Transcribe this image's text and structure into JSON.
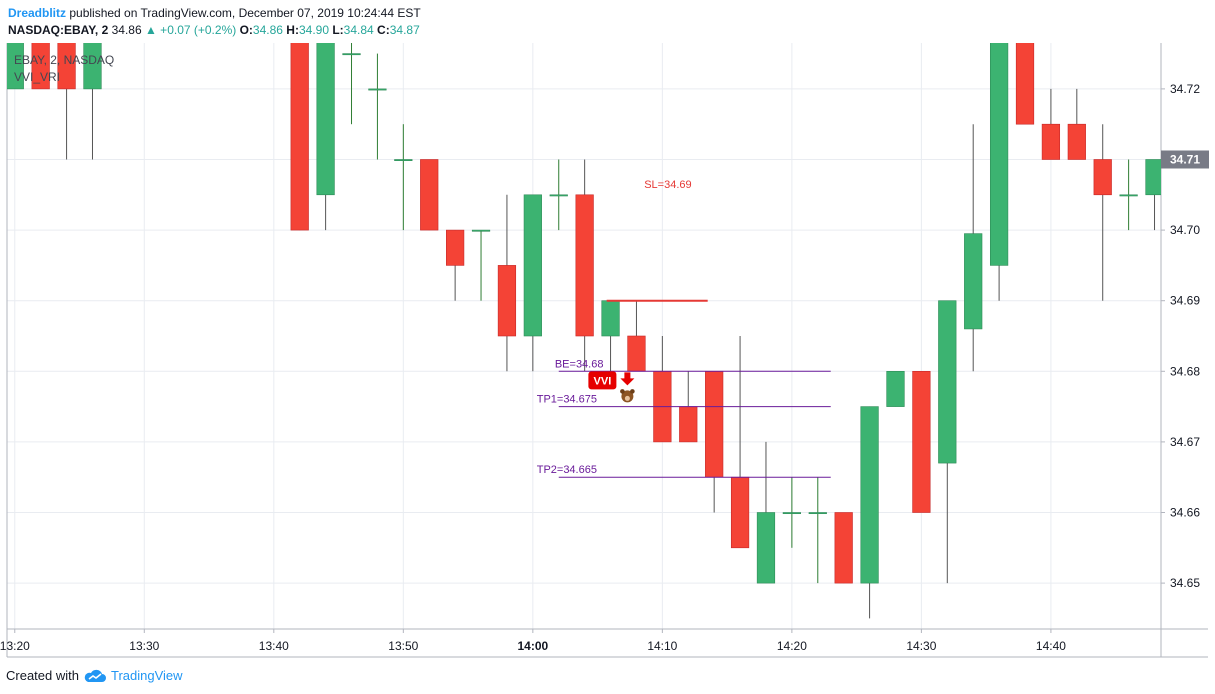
{
  "header": {
    "author": "Dreadblitz",
    "published": " published on TradingView.com, December 07, 2019 10:24:44 EST",
    "symbol": "NASDAQ:EBAY, 2",
    "last": "34.86",
    "change": "▲ +0.07 (+0.2%)",
    "o_label": "O:",
    "o": "34.86",
    "h_label": "H:",
    "h": "34.90",
    "l_label": "L:",
    "l": "34.84",
    "c_label": "C:",
    "c": "34.87"
  },
  "legend": {
    "series": "EBAY, 2, NASDAQ",
    "indicator": "VVI_VRI"
  },
  "footer": {
    "created": "Created with",
    "brand": "TradingView"
  },
  "colors": {
    "up": "#3cb371",
    "down": "#f44336",
    "grid": "#e9ecf1",
    "axis": "#b2b5be",
    "text": "#131722",
    "last_price_bg": "#787b86",
    "level": "#6a1b9a",
    "sl": "#e53935"
  },
  "chart_data": {
    "type": "candlestick",
    "x_ticks": [
      {
        "t": 0,
        "label": "13:20",
        "bold": false
      },
      {
        "t": 10,
        "label": "13:30",
        "bold": false
      },
      {
        "t": 20,
        "label": "13:40",
        "bold": false
      },
      {
        "t": 30,
        "label": "13:50",
        "bold": false
      },
      {
        "t": 40,
        "label": "14:00",
        "bold": true
      },
      {
        "t": 50,
        "label": "14:10",
        "bold": false
      },
      {
        "t": 60,
        "label": "14:20",
        "bold": false
      },
      {
        "t": 70,
        "label": "14:30",
        "bold": false
      },
      {
        "t": 80,
        "label": "14:40",
        "bold": false
      }
    ],
    "y_ticks": [
      "34.65",
      "34.66",
      "34.67",
      "34.68",
      "34.69",
      "34.70",
      "34.71",
      "34.72"
    ],
    "y_values": [
      34.65,
      34.66,
      34.67,
      34.68,
      34.69,
      34.7,
      34.71,
      34.72
    ],
    "ylim": [
      34.6435,
      34.7265
    ],
    "xlim": [
      -0.6,
      88.5
    ],
    "last_price": {
      "value": 34.71,
      "label": "34.71"
    },
    "candles": [
      {
        "t": -2,
        "o": 34.72,
        "h": 34.73,
        "l": 34.71,
        "c": 34.73
      },
      {
        "t": 0,
        "o": 34.72,
        "h": 34.73,
        "l": 34.72,
        "c": 34.73
      },
      {
        "t": 2,
        "o": 34.73,
        "h": 34.73,
        "l": 34.72,
        "c": 34.72
      },
      {
        "t": 4,
        "o": 34.73,
        "h": 34.73,
        "l": 34.71,
        "c": 34.72
      },
      {
        "t": 6,
        "o": 34.72,
        "h": 34.73,
        "l": 34.71,
        "c": 34.73
      },
      {
        "t": 22,
        "o": 34.73,
        "h": 34.73,
        "l": 34.7,
        "c": 34.7
      },
      {
        "t": 24,
        "o": 34.705,
        "h": 34.73,
        "l": 34.7,
        "c": 34.73
      },
      {
        "t": 26,
        "o": 34.725,
        "h": 34.73,
        "l": 34.715,
        "c": 34.725
      },
      {
        "t": 28,
        "o": 34.72,
        "h": 34.725,
        "l": 34.71,
        "c": 34.72
      },
      {
        "t": 30,
        "o": 34.71,
        "h": 34.715,
        "l": 34.7,
        "c": 34.71
      },
      {
        "t": 32,
        "o": 34.71,
        "h": 34.71,
        "l": 34.7,
        "c": 34.7
      },
      {
        "t": 34,
        "o": 34.7,
        "h": 34.7,
        "l": 34.69,
        "c": 34.695
      },
      {
        "t": 36,
        "o": 34.7,
        "h": 34.7,
        "l": 34.69,
        "c": 34.7
      },
      {
        "t": 38,
        "o": 34.695,
        "h": 34.705,
        "l": 34.68,
        "c": 34.685
      },
      {
        "t": 40,
        "o": 34.685,
        "h": 34.705,
        "l": 34.68,
        "c": 34.705
      },
      {
        "t": 42,
        "o": 34.705,
        "h": 34.71,
        "l": 34.7,
        "c": 34.705
      },
      {
        "t": 44,
        "o": 34.705,
        "h": 34.71,
        "l": 34.68,
        "c": 34.685
      },
      {
        "t": 46,
        "o": 34.685,
        "h": 34.69,
        "l": 34.68,
        "c": 34.69
      },
      {
        "t": 48,
        "o": 34.685,
        "h": 34.69,
        "l": 34.68,
        "c": 34.68
      },
      {
        "t": 50,
        "o": 34.68,
        "h": 34.685,
        "l": 34.67,
        "c": 34.67
      },
      {
        "t": 52,
        "o": 34.675,
        "h": 34.68,
        "l": 34.67,
        "c": 34.67
      },
      {
        "t": 54,
        "o": 34.68,
        "h": 34.68,
        "l": 34.66,
        "c": 34.665
      },
      {
        "t": 56,
        "o": 34.665,
        "h": 34.685,
        "l": 34.655,
        "c": 34.655
      },
      {
        "t": 58,
        "o": 34.65,
        "h": 34.67,
        "l": 34.65,
        "c": 34.66
      },
      {
        "t": 60,
        "o": 34.66,
        "h": 34.665,
        "l": 34.655,
        "c": 34.66
      },
      {
        "t": 62,
        "o": 34.66,
        "h": 34.665,
        "l": 34.65,
        "c": 34.66
      },
      {
        "t": 64,
        "o": 34.66,
        "h": 34.66,
        "l": 34.65,
        "c": 34.65
      },
      {
        "t": 66,
        "o": 34.65,
        "h": 34.675,
        "l": 34.645,
        "c": 34.675
      },
      {
        "t": 68,
        "o": 34.675,
        "h": 34.68,
        "l": 34.675,
        "c": 34.68
      },
      {
        "t": 70,
        "o": 34.68,
        "h": 34.68,
        "l": 34.66,
        "c": 34.66
      },
      {
        "t": 72,
        "o": 34.667,
        "h": 34.69,
        "l": 34.65,
        "c": 34.69
      },
      {
        "t": 74,
        "o": 34.686,
        "h": 34.715,
        "l": 34.68,
        "c": 34.6995
      },
      {
        "t": 76,
        "o": 34.695,
        "h": 34.73,
        "l": 34.69,
        "c": 34.73
      },
      {
        "t": 78,
        "o": 34.73,
        "h": 34.73,
        "l": 34.715,
        "c": 34.715
      },
      {
        "t": 80,
        "o": 34.715,
        "h": 34.72,
        "l": 34.71,
        "c": 34.71
      },
      {
        "t": 82,
        "o": 34.715,
        "h": 34.72,
        "l": 34.71,
        "c": 34.71
      },
      {
        "t": 84,
        "o": 34.71,
        "h": 34.715,
        "l": 34.69,
        "c": 34.705
      },
      {
        "t": 86,
        "o": 34.705,
        "h": 34.71,
        "l": 34.7,
        "c": 34.705
      },
      {
        "t": 88,
        "o": 34.705,
        "h": 34.71,
        "l": 34.7,
        "c": 34.71
      }
    ],
    "levels": [
      {
        "label": "SL=34.69",
        "price": 34.69,
        "from": 45.7,
        "to": 53.5,
        "kind": "sl",
        "label_t": 48.6
      },
      {
        "label": "BE=34.68",
        "price": 34.68,
        "from": 42.0,
        "to": 63.0,
        "kind": "level",
        "label_t": 41.7
      },
      {
        "label": "TP1=34.675",
        "price": 34.675,
        "from": 42.0,
        "to": 63.0,
        "kind": "level",
        "label_t": 40.3
      },
      {
        "label": "TP2=34.665",
        "price": 34.665,
        "from": 42.0,
        "to": 63.0,
        "kind": "level",
        "label_t": 40.3
      }
    ],
    "signal": {
      "label": "VVI",
      "t": 47.3,
      "price": 34.678
    }
  }
}
